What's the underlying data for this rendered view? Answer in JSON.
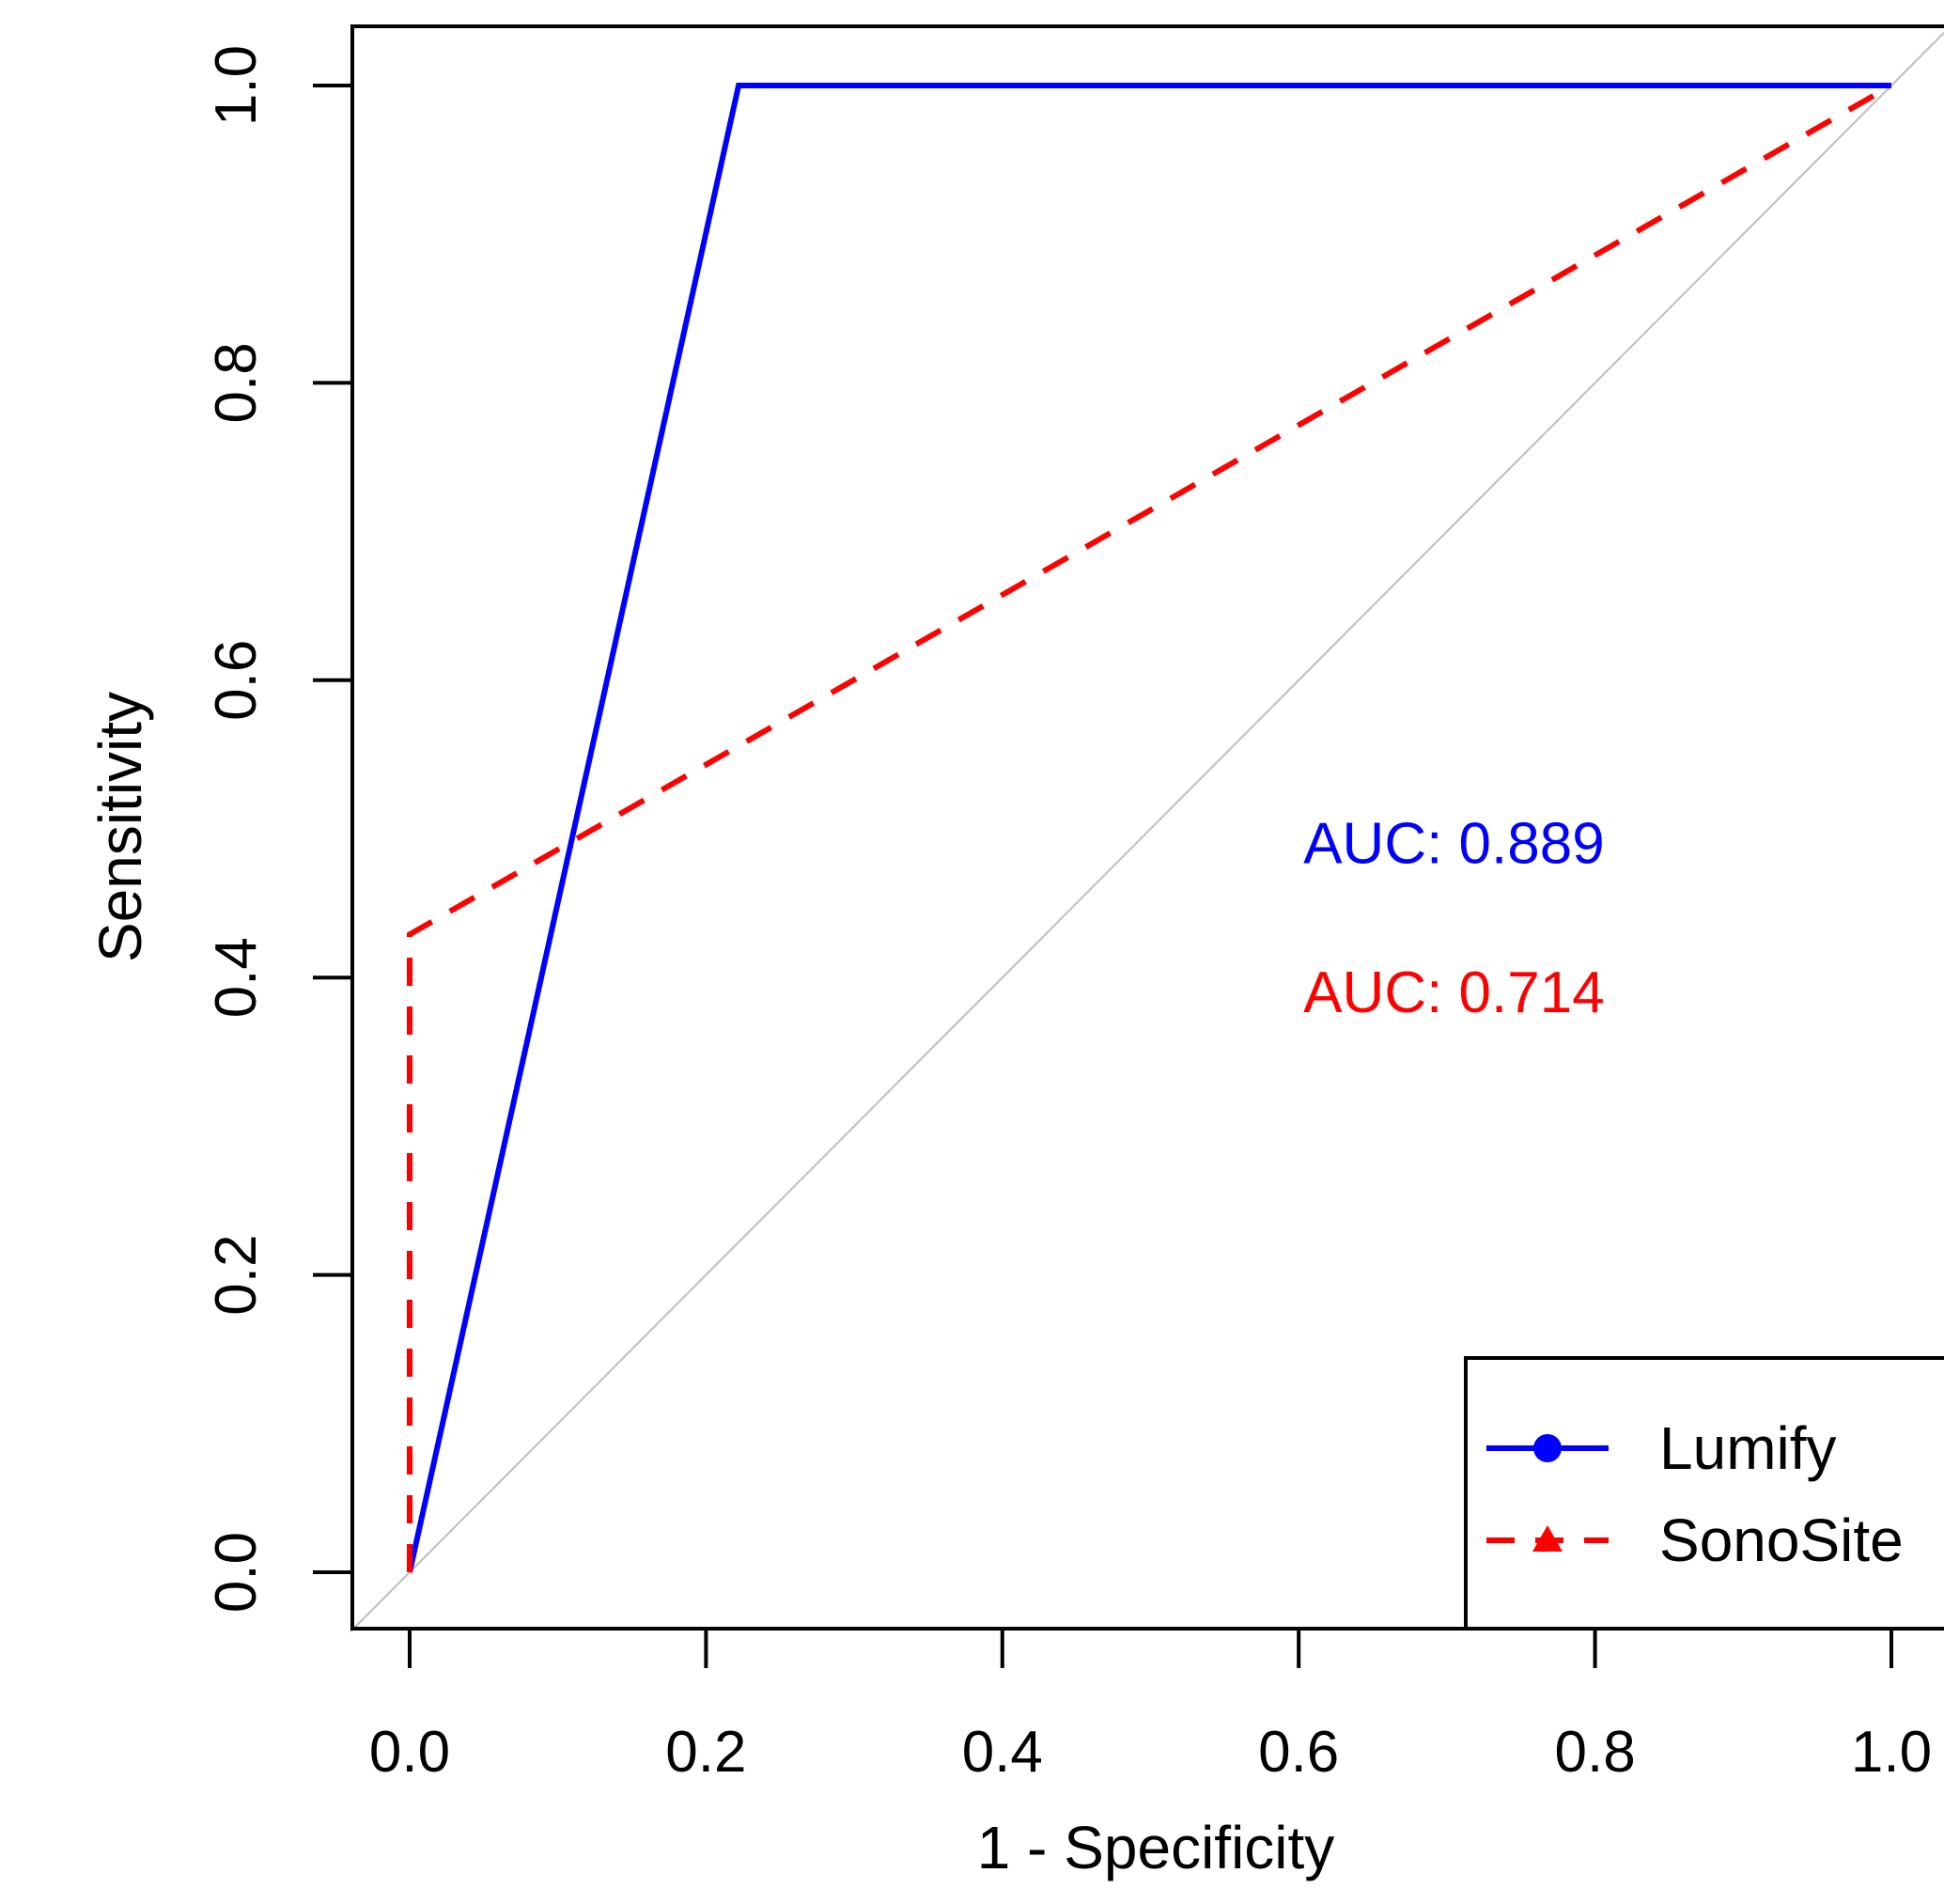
{
  "chart_data": {
    "type": "line",
    "title": "",
    "xlabel": "1 - Specificity",
    "ylabel": "Sensitivity",
    "xlim": [
      -0.04,
      1.04
    ],
    "ylim": [
      -0.04,
      1.04
    ],
    "x_ticks": [
      "0.0",
      "0.2",
      "0.4",
      "0.6",
      "0.8",
      "1.0"
    ],
    "y_ticks": [
      "0.0",
      "0.2",
      "0.4",
      "0.6",
      "0.8",
      "1.0"
    ],
    "grid": false,
    "reference_line": {
      "x": [
        0,
        1
      ],
      "y": [
        0,
        1
      ],
      "color": "#bebebe"
    },
    "series": [
      {
        "name": "Lumify",
        "color": "#0000ff",
        "dash": "solid",
        "marker": "circle",
        "x": [
          0.0,
          0.222,
          1.0
        ],
        "y": [
          0.0,
          1.0,
          1.0
        ]
      },
      {
        "name": "SonoSite",
        "color": "#ff0000",
        "dash": "dashed",
        "marker": "triangle",
        "x": [
          0.0,
          0.0,
          1.0
        ],
        "y": [
          0.0,
          0.429,
          1.0
        ]
      }
    ],
    "annotations": [
      {
        "text": "AUC: 0.889",
        "color": "#0000ff",
        "x": 0.6,
        "y": 0.48
      },
      {
        "text": "AUC: 0.714",
        "color": "#ff0000",
        "x": 0.6,
        "y": 0.38
      }
    ],
    "legend": {
      "position": "bottom-right"
    }
  }
}
